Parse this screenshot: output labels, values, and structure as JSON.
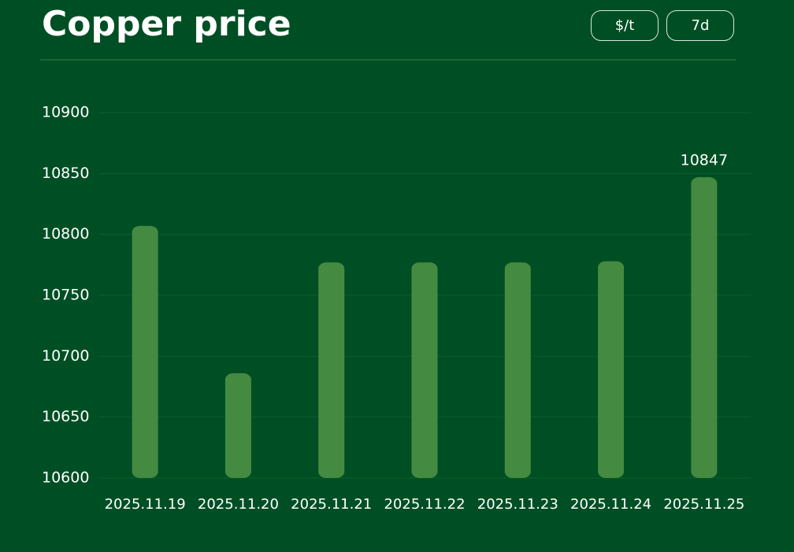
{
  "chart_data": {
    "type": "bar",
    "title": "Copper price",
    "controls": [
      "$/t",
      "7d"
    ],
    "categories": [
      "2025.11.19",
      "2025.11.20",
      "2025.11.21",
      "2025.11.22",
      "2025.11.23",
      "2025.11.24",
      "2025.11.25"
    ],
    "values": [
      10807,
      10686,
      10777,
      10777,
      10777,
      10778,
      10847
    ],
    "value_labels": [
      null,
      null,
      null,
      null,
      null,
      null,
      "10847"
    ],
    "color": "#448a40",
    "ylim": [
      10600,
      10900
    ],
    "yticks": [
      10600,
      10650,
      10700,
      10750,
      10800,
      10850,
      10900
    ],
    "grid": true
  }
}
